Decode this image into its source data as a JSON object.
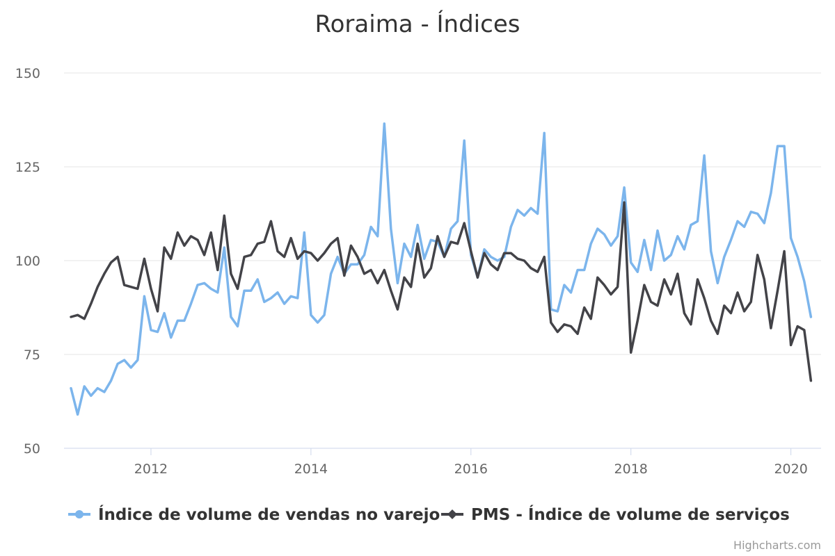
{
  "chart_data": {
    "type": "line",
    "title": "Roraima - Índices",
    "ylim": [
      50,
      150
    ],
    "yticks": [
      50,
      75,
      100,
      125,
      150
    ],
    "xticks": [
      "2012",
      "2014",
      "2016",
      "2018",
      "2020"
    ],
    "grid": true,
    "legend_position": "bottom-center",
    "start": "2011-01",
    "series": [
      {
        "name": "Índice de volume de vendas no varejo",
        "color": "#7cb5ec",
        "values": [
          66,
          59,
          66.5,
          64,
          66,
          65,
          68,
          72.5,
          73.5,
          71.5,
          73.5,
          90.5,
          81.5,
          81,
          86,
          79.5,
          84,
          84,
          88.5,
          93.5,
          94,
          92.5,
          91.5,
          103.5,
          85,
          82.5,
          92,
          92,
          95,
          89,
          90,
          91.5,
          88.5,
          90.5,
          90,
          107.5,
          85.5,
          83.5,
          85.5,
          96.5,
          101,
          96.5,
          99,
          99,
          101.5,
          109,
          106.5,
          136.5,
          108.5,
          94,
          104.5,
          101,
          109.5,
          100.5,
          105.5,
          105,
          101,
          108.5,
          110.5,
          132,
          101.5,
          95.5,
          103,
          101,
          100,
          101,
          109,
          113.5,
          112,
          114,
          112.5,
          134,
          87,
          86.5,
          93.5,
          91.5,
          97.5,
          97.5,
          104.5,
          108.5,
          107,
          104,
          106.5,
          119.5,
          99.5,
          97,
          105.5,
          97.5,
          108,
          100,
          101.5,
          106.5,
          103,
          109.5,
          110.5,
          128,
          102.5,
          94,
          101,
          105.5,
          110.5,
          109,
          113,
          112.5,
          110,
          118,
          130.5,
          130.5,
          106,
          101,
          94.5,
          85
        ]
      },
      {
        "name": "PMS - Índice de volume de serviços",
        "color": "#434348",
        "values": [
          85,
          85.5,
          84.5,
          88.5,
          93,
          96.5,
          99.5,
          101,
          93.5,
          93,
          92.5,
          100.5,
          92.5,
          86.5,
          103.5,
          100.5,
          107.5,
          104,
          106.5,
          105.5,
          101.5,
          107.5,
          97.5,
          112,
          96.5,
          92.5,
          101,
          101.5,
          104.5,
          105,
          110.5,
          102.5,
          101,
          106,
          100.5,
          102.5,
          102,
          100,
          102,
          104.5,
          106,
          96,
          104,
          101,
          96.5,
          97.5,
          94,
          97.5,
          92,
          87,
          95.5,
          93,
          104.5,
          95.5,
          98,
          106.5,
          101,
          105,
          104.5,
          110,
          102.5,
          95.5,
          102,
          99,
          97.5,
          102,
          102,
          100.5,
          100,
          98,
          97,
          101,
          83.5,
          81,
          83,
          82.5,
          80.5,
          87.5,
          84.5,
          95.5,
          93.5,
          91,
          93,
          115.5,
          75.5,
          84,
          93.5,
          89,
          88,
          95,
          91,
          96.5,
          86,
          83,
          95,
          90,
          84,
          80.5,
          88,
          86,
          91.5,
          86.5,
          89,
          101.5,
          95,
          82,
          92,
          102.5,
          77.5,
          82.5,
          81.5,
          68
        ]
      }
    ]
  },
  "credits": "Highcharts.com"
}
